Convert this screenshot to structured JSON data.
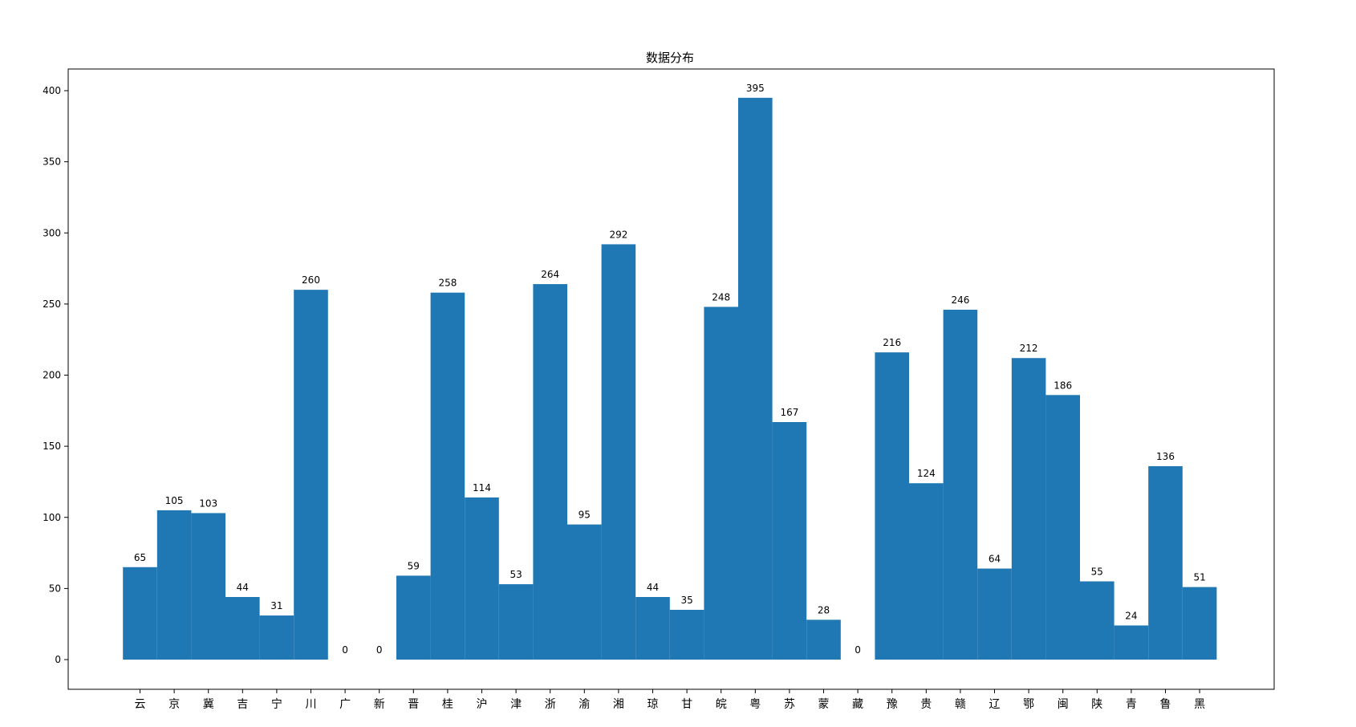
{
  "chart_data": {
    "type": "bar",
    "title": "数据分布",
    "xlabel": "",
    "ylabel": "",
    "categories": [
      "云",
      "京",
      "冀",
      "吉",
      "宁",
      "川",
      "广",
      "新",
      "晋",
      "桂",
      "沪",
      "津",
      "浙",
      "渝",
      "湘",
      "琼",
      "甘",
      "皖",
      "粤",
      "苏",
      "蒙",
      "藏",
      "豫",
      "贵",
      "赣",
      "辽",
      "鄂",
      "闽",
      "陕",
      "青",
      "鲁",
      "黑"
    ],
    "values": [
      65,
      105,
      103,
      44,
      31,
      260,
      0,
      0,
      59,
      258,
      114,
      53,
      264,
      95,
      292,
      44,
      35,
      248,
      395,
      167,
      28,
      0,
      216,
      124,
      246,
      64,
      212,
      186,
      55,
      24,
      136,
      51
    ],
    "ylim": [
      -20,
      415
    ],
    "yticks": [
      0,
      50,
      100,
      150,
      200,
      250,
      300,
      350,
      400
    ],
    "bar_color": "#1f77b4",
    "grid": false,
    "legend": "none"
  }
}
